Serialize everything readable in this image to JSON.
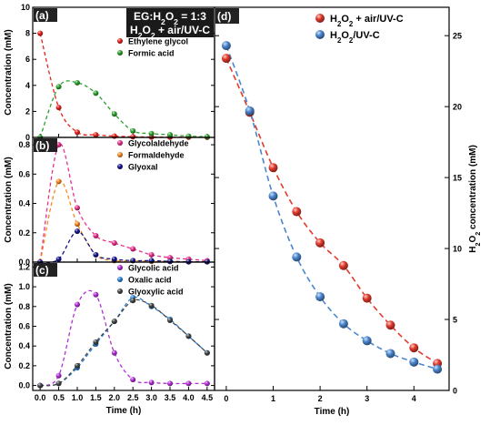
{
  "annotation": {
    "line1_prefix": "EG:H",
    "line1_sub": "2",
    "line1_mid": "O",
    "line1_sub2": "2",
    "line1_suffix": " = 1:3",
    "line2_prefix": "H",
    "line2_sub": "2",
    "line2_mid": "O",
    "line2_sub2": "2",
    "line2_suffix": " + air/UV-C"
  },
  "panel_labels": [
    "(a)",
    "(b)",
    "(c)",
    "(d)"
  ],
  "chart_data": [
    {
      "id": "a",
      "type": "scatter",
      "xlim": [
        -0.2,
        4.7
      ],
      "ylim": [
        0,
        10
      ],
      "xticks": [
        0,
        0.5,
        1,
        1.5,
        2,
        2.5,
        3,
        3.5,
        4,
        4.5
      ],
      "yticks": [
        0,
        2,
        4,
        6,
        8,
        10
      ],
      "ylabel": "Concentration (mM)",
      "xlabel": "",
      "legend": "top-right",
      "series": [
        {
          "name": "Ethylene glycol",
          "color": "#e8221b",
          "x": [
            0,
            0.5,
            1,
            1.5,
            2,
            2.5,
            3,
            3.5,
            4,
            4.5
          ],
          "y": [
            8.0,
            2.3,
            0.4,
            0.2,
            0.1,
            0.05,
            0.03,
            0.02,
            0.02,
            0.01
          ]
        },
        {
          "name": "Formic acid",
          "color": "#2ca02c",
          "x": [
            0,
            0.5,
            1,
            1.5,
            2,
            2.5,
            3,
            3.5,
            4,
            4.5
          ],
          "y": [
            0,
            3.9,
            4.2,
            3.4,
            1.8,
            0.5,
            0.3,
            0.2,
            0.1,
            0.05
          ]
        }
      ]
    },
    {
      "id": "b",
      "type": "scatter",
      "xlim": [
        -0.2,
        4.7
      ],
      "ylim": [
        0,
        0.85
      ],
      "xticks": [
        0,
        0.5,
        1,
        1.5,
        2,
        2.5,
        3,
        3.5,
        4,
        4.5
      ],
      "yticks": [
        0,
        0.2,
        0.4,
        0.6,
        0.8
      ],
      "ylabel": "Concentration (mM)",
      "xlabel": "",
      "legend": "top-right",
      "series": [
        {
          "name": "Glycolaldehyde",
          "color": "#e8308c",
          "x": [
            0,
            0.5,
            1,
            1.5,
            2,
            2.5,
            3,
            3.5,
            4,
            4.5
          ],
          "y": [
            0,
            0.8,
            0.37,
            0.18,
            0.13,
            0.09,
            0.05,
            0.03,
            0.02,
            0.01
          ]
        },
        {
          "name": "Formaldehyde",
          "color": "#f5891f",
          "x": [
            0,
            0.5,
            1,
            1.5,
            2,
            2.5,
            3,
            3.5,
            4,
            4.5
          ],
          "y": [
            0,
            0.55,
            0.26,
            0.05,
            0.01,
            0.01,
            0.005,
            0.005,
            0.002,
            0.002
          ]
        },
        {
          "name": "Glyoxal",
          "color": "#13148c",
          "x": [
            0,
            0.5,
            1,
            1.5,
            2,
            2.5,
            3,
            3.5,
            4,
            4.5
          ],
          "y": [
            0,
            0.02,
            0.21,
            0.05,
            0.02,
            0.01,
            0.01,
            0.005,
            0.002,
            0.002
          ]
        }
      ]
    },
    {
      "id": "c",
      "type": "scatter",
      "xlim": [
        -0.2,
        4.7
      ],
      "ylim": [
        -0.05,
        1.25
      ],
      "xticks": [
        0,
        0.5,
        1,
        1.5,
        2,
        2.5,
        3,
        3.5,
        4,
        4.5
      ],
      "xticklabels": [
        "0.0",
        "0.5",
        "1.0",
        "1.5",
        "2.0",
        "2.5",
        "3.0",
        "3.5",
        "4.0",
        "4.5"
      ],
      "yticks": [
        0,
        0.2,
        0.4,
        0.6,
        0.8,
        1.0,
        1.2
      ],
      "ylabel": "Concentration (mM)",
      "xlabel": "Time (h)",
      "legend": "top-right",
      "series": [
        {
          "name": "Glycolic acid",
          "color": "#b12fd6",
          "x": [
            0,
            0.5,
            1,
            1.5,
            2,
            2.5,
            3,
            3.5,
            4,
            4.5
          ],
          "y": [
            0,
            0.1,
            0.82,
            0.92,
            0.33,
            0.06,
            0.03,
            0.02,
            0.02,
            0.02
          ]
        },
        {
          "name": "Oxalic acid",
          "color": "#2a82dc",
          "x": [
            0,
            0.5,
            1,
            1.5,
            2,
            2.5,
            3,
            3.5,
            4,
            4.5
          ],
          "y": [
            0,
            0.02,
            0.18,
            0.42,
            0.65,
            0.89,
            0.8,
            0.67,
            0.5,
            0.33
          ]
        },
        {
          "name": "Glyoxylic acid",
          "color": "#444444",
          "x": [
            0,
            0.5,
            1,
            1.5,
            2,
            2.5,
            3,
            3.5,
            4,
            4.5
          ],
          "y": [
            0,
            0.02,
            0.2,
            0.44,
            0.65,
            0.86,
            0.81,
            0.66,
            0.5,
            0.33
          ]
        }
      ]
    },
    {
      "id": "d",
      "type": "scatter",
      "xlim": [
        -0.25,
        4.75
      ],
      "ylim": [
        0,
        27
      ],
      "xticks": [
        0,
        1,
        2,
        3,
        4
      ],
      "yticks": [
        0,
        5,
        10,
        15,
        20,
        25
      ],
      "xlabel": "Time (h)",
      "ylabel_prefix": "H",
      "ylabel_sub": "2",
      "ylabel_mid": "O",
      "ylabel_sub2": "2",
      "ylabel_suffix": " concentration (mM)",
      "yaxis_side": "right",
      "legend": "top",
      "series": [
        {
          "name_prefix": "H",
          "name_sub": "2",
          "name_mid": "O",
          "name_sub2": "2",
          "name_suffix": " + air/UV-C",
          "color": "#e33a2c",
          "x": [
            0,
            0.5,
            1,
            1.5,
            2,
            2.5,
            3,
            3.5,
            4,
            4.5
          ],
          "y": [
            23.4,
            19.6,
            15.7,
            12.6,
            10.4,
            8.8,
            6.5,
            4.6,
            3.0,
            1.9
          ]
        },
        {
          "name_prefix": "H",
          "name_sub": "2",
          "name_mid": "O",
          "name_sub2": "2",
          "name_suffix": "/UV-C",
          "color": "#4a86cf",
          "x": [
            0,
            0.5,
            1,
            1.5,
            2,
            2.5,
            3,
            3.5,
            4,
            4.5
          ],
          "y": [
            24.3,
            19.7,
            13.7,
            9.4,
            6.6,
            4.7,
            3.5,
            2.6,
            2.0,
            1.5
          ]
        }
      ]
    }
  ]
}
